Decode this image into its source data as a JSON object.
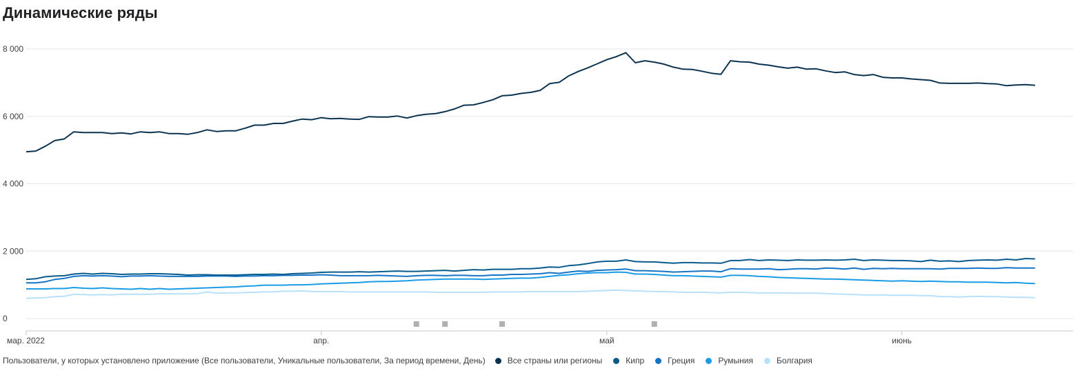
{
  "page": {
    "title": "Динамические ряды"
  },
  "legend": {
    "description": "Пользователи, у которых установлено приложение (Все пользователи, Уникальные пользователи, За период времени, День)"
  },
  "chart_data": {
    "type": "line",
    "title": "Динамические ряды",
    "xlabel": "",
    "ylabel": "",
    "x_start": "2022-03-01",
    "x_end": "2022-06-19",
    "x_tick_labels": [
      {
        "date": "2022-03-01",
        "label": "мар. 2022"
      },
      {
        "date": "2022-04-01",
        "label": "апр."
      },
      {
        "date": "2022-05-01",
        "label": "май"
      },
      {
        "date": "2022-06-01",
        "label": "июнь"
      }
    ],
    "y_ticks": [
      {
        "value": 0,
        "label": "0"
      },
      {
        "value": 2000,
        "label": "2 000"
      },
      {
        "value": 4000,
        "label": "4 000"
      },
      {
        "value": 6000,
        "label": "6 000"
      },
      {
        "value": 8000,
        "label": "8 000"
      }
    ],
    "ylim": [
      0,
      8000
    ],
    "grid": true,
    "legend_position": "bottom",
    "annotation_dates": [
      "2022-04-11",
      "2022-04-14",
      "2022-04-20",
      "2022-05-06"
    ],
    "annotation_color": "#b0b0b0",
    "series": [
      {
        "name": "Все страны или регионы",
        "color": "#0b3350",
        "values": [
          4950,
          4970,
          5110,
          5280,
          5330,
          5540,
          5520,
          5520,
          5520,
          5490,
          5510,
          5480,
          5540,
          5520,
          5540,
          5490,
          5490,
          5470,
          5520,
          5600,
          5550,
          5570,
          5570,
          5650,
          5740,
          5740,
          5790,
          5790,
          5860,
          5920,
          5900,
          5960,
          5930,
          5940,
          5920,
          5910,
          5990,
          5980,
          5980,
          6010,
          5950,
          6020,
          6060,
          6080,
          6140,
          6220,
          6330,
          6340,
          6410,
          6490,
          6610,
          6630,
          6680,
          6710,
          6770,
          6970,
          7010,
          7200,
          7330,
          7440,
          7560,
          7680,
          7770,
          7890,
          7590,
          7650,
          7610,
          7550,
          7460,
          7400,
          7390,
          7340,
          7280,
          7250,
          7650,
          7620,
          7610,
          7550,
          7520,
          7470,
          7430,
          7460,
          7400,
          7410,
          7350,
          7300,
          7320,
          7240,
          7210,
          7240,
          7160,
          7140,
          7140,
          7110,
          7090,
          7070,
          6990,
          6980,
          6980,
          6980,
          6990,
          6970,
          6960,
          6910,
          6930,
          6940,
          6920
        ]
      },
      {
        "name": "Кипр",
        "color": "#075a8c",
        "values": [
          1160,
          1180,
          1240,
          1260,
          1270,
          1320,
          1340,
          1320,
          1340,
          1330,
          1310,
          1320,
          1320,
          1330,
          1330,
          1320,
          1310,
          1290,
          1300,
          1300,
          1290,
          1290,
          1290,
          1300,
          1310,
          1310,
          1320,
          1310,
          1330,
          1340,
          1350,
          1370,
          1380,
          1380,
          1380,
          1390,
          1380,
          1390,
          1400,
          1410,
          1400,
          1400,
          1410,
          1420,
          1430,
          1410,
          1430,
          1450,
          1440,
          1460,
          1460,
          1460,
          1480,
          1480,
          1500,
          1530,
          1520,
          1570,
          1590,
          1630,
          1680,
          1700,
          1700,
          1740,
          1690,
          1680,
          1680,
          1660,
          1640,
          1660,
          1660,
          1650,
          1650,
          1640,
          1720,
          1720,
          1750,
          1720,
          1740,
          1730,
          1720,
          1740,
          1730,
          1730,
          1740,
          1730,
          1740,
          1760,
          1720,
          1740,
          1730,
          1720,
          1720,
          1710,
          1690,
          1730,
          1700,
          1710,
          1690,
          1720,
          1730,
          1740,
          1730,
          1760,
          1740,
          1780,
          1770
        ]
      },
      {
        "name": "Греция",
        "color": "#1473c5",
        "values": [
          1060,
          1060,
          1090,
          1160,
          1190,
          1250,
          1270,
          1260,
          1270,
          1260,
          1240,
          1260,
          1260,
          1270,
          1260,
          1250,
          1250,
          1250,
          1250,
          1260,
          1260,
          1260,
          1250,
          1260,
          1260,
          1270,
          1270,
          1280,
          1280,
          1290,
          1290,
          1300,
          1290,
          1270,
          1270,
          1270,
          1270,
          1280,
          1270,
          1260,
          1250,
          1270,
          1280,
          1280,
          1270,
          1280,
          1280,
          1270,
          1270,
          1290,
          1290,
          1310,
          1310,
          1320,
          1330,
          1360,
          1340,
          1380,
          1410,
          1400,
          1430,
          1440,
          1450,
          1470,
          1420,
          1420,
          1410,
          1400,
          1380,
          1390,
          1400,
          1410,
          1410,
          1390,
          1480,
          1470,
          1470,
          1470,
          1480,
          1450,
          1460,
          1480,
          1480,
          1470,
          1500,
          1490,
          1470,
          1500,
          1460,
          1490,
          1480,
          1490,
          1480,
          1480,
          1480,
          1480,
          1470,
          1490,
          1490,
          1490,
          1500,
          1490,
          1490,
          1510,
          1500,
          1500,
          1500
        ]
      },
      {
        "name": "Румыния",
        "color": "#1a9be6",
        "values": [
          880,
          880,
          880,
          890,
          890,
          920,
          900,
          890,
          910,
          890,
          880,
          870,
          890,
          870,
          890,
          870,
          880,
          890,
          900,
          910,
          920,
          930,
          940,
          960,
          970,
          990,
          990,
          990,
          1000,
          1000,
          1010,
          1030,
          1040,
          1050,
          1060,
          1070,
          1090,
          1100,
          1100,
          1110,
          1120,
          1140,
          1150,
          1160,
          1170,
          1170,
          1170,
          1170,
          1160,
          1170,
          1180,
          1190,
          1200,
          1200,
          1220,
          1250,
          1280,
          1300,
          1330,
          1350,
          1360,
          1360,
          1380,
          1370,
          1320,
          1320,
          1310,
          1290,
          1270,
          1270,
          1260,
          1250,
          1240,
          1230,
          1280,
          1280,
          1270,
          1250,
          1240,
          1220,
          1210,
          1200,
          1190,
          1180,
          1170,
          1170,
          1160,
          1150,
          1140,
          1130,
          1120,
          1110,
          1120,
          1110,
          1100,
          1110,
          1100,
          1090,
          1090,
          1080,
          1080,
          1080,
          1070,
          1060,
          1070,
          1050,
          1040
        ]
      },
      {
        "name": "Болгария",
        "color": "#b7e1fb",
        "values": [
          600,
          610,
          620,
          650,
          660,
          720,
          710,
          700,
          710,
          700,
          720,
          720,
          720,
          720,
          730,
          730,
          730,
          730,
          740,
          790,
          750,
          760,
          760,
          770,
          780,
          790,
          790,
          810,
          810,
          820,
          800,
          800,
          800,
          800,
          790,
          790,
          790,
          790,
          790,
          790,
          790,
          790,
          790,
          780,
          780,
          780,
          780,
          780,
          780,
          790,
          790,
          790,
          790,
          800,
          800,
          800,
          800,
          800,
          800,
          810,
          820,
          830,
          840,
          830,
          820,
          810,
          800,
          800,
          790,
          780,
          780,
          780,
          770,
          760,
          780,
          780,
          770,
          760,
          760,
          760,
          760,
          750,
          750,
          750,
          740,
          730,
          720,
          710,
          700,
          700,
          700,
          690,
          690,
          690,
          680,
          680,
          650,
          650,
          640,
          650,
          660,
          650,
          650,
          640,
          630,
          630,
          620
        ]
      }
    ]
  }
}
